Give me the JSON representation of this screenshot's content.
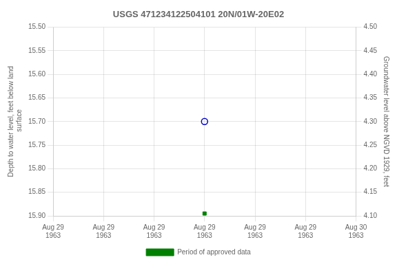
{
  "chart_data": {
    "type": "scatter",
    "title": "USGS 471234122504101 20N/01W-20E02",
    "ylabel": "Depth to water level, feet below land\n surface",
    "y2label": "Groundwater level above NGVD 1929, feet",
    "categories": [
      "Aug 29\n1963",
      "Aug 29\n1963",
      "Aug 29\n1963",
      "Aug 29\n1963",
      "Aug 29\n1963",
      "Aug 29\n1963",
      "Aug 30\n1963"
    ],
    "series": [
      {
        "color": "#0000cc",
        "marker": "circle_open",
        "values": [
          null,
          null,
          null,
          15.7,
          null,
          null,
          null
        ]
      },
      {
        "name": "Period of approved data",
        "color": "#008000",
        "marker": "square",
        "values": [
          null,
          null,
          null,
          15.895,
          null,
          null,
          null
        ]
      }
    ],
    "ylim": [
      15.9,
      15.5
    ],
    "yticks": [
      {
        "value": 15.5,
        "label": "15.50"
      },
      {
        "value": 15.55,
        "label": "15.55"
      },
      {
        "value": 15.6,
        "label": "15.60"
      },
      {
        "value": 15.65,
        "label": "15.65"
      },
      {
        "value": 15.7,
        "label": "15.70"
      },
      {
        "value": 15.75,
        "label": "15.75"
      },
      {
        "value": 15.8,
        "label": "15.80"
      },
      {
        "value": 15.85,
        "label": "15.85"
      },
      {
        "value": 15.9,
        "label": "15.90"
      }
    ],
    "y2lim": [
      4.1,
      4.5
    ],
    "y2ticks": [
      {
        "value": 4.5,
        "label": "4.50"
      },
      {
        "value": 4.45,
        "label": "4.45"
      },
      {
        "value": 4.4,
        "label": "4.40"
      },
      {
        "value": 4.35,
        "label": "4.35"
      },
      {
        "value": 4.3,
        "label": "4.30"
      },
      {
        "value": 4.25,
        "label": "4.25"
      },
      {
        "value": 4.2,
        "label": "4.20"
      },
      {
        "value": 4.15,
        "label": "4.15"
      },
      {
        "value": 4.1,
        "label": "4.10"
      }
    ],
    "grid": true,
    "legend": "bottom"
  }
}
